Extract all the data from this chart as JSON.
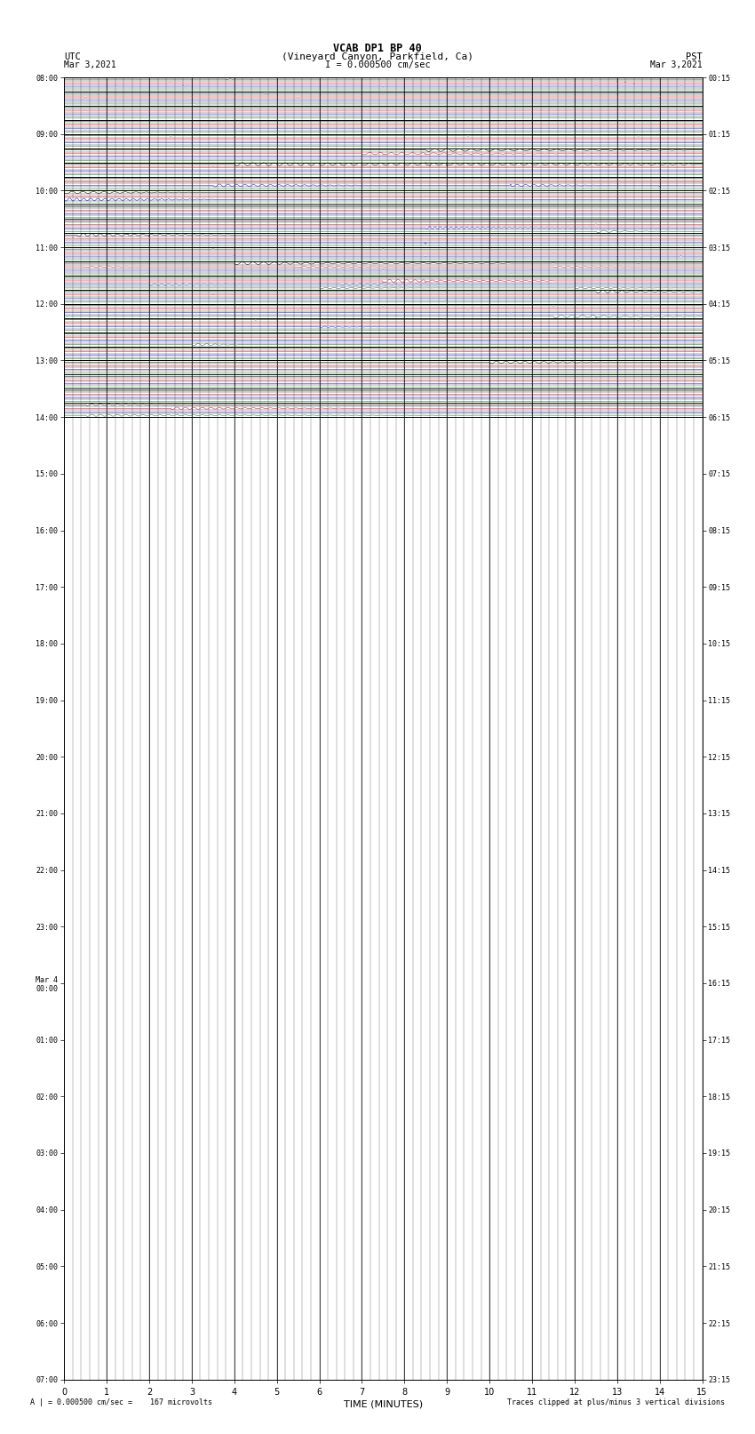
{
  "title_line1": "VCAB DP1 BP 40",
  "title_line2": "(Vineyard Canyon, Parkfield, Ca)",
  "scale_text": "I = 0.000500 cm/sec",
  "utc_label": "UTC",
  "pst_label": "PST",
  "date_left": "Mar 3,2021",
  "date_right": "Mar 3,2021",
  "xlabel": "TIME (MINUTES)",
  "footer_left": "A | = 0.000500 cm/sec =    167 microvolts",
  "footer_right": "Traces clipped at plus/minus 3 vertical divisions",
  "bg_color": "#ffffff",
  "trace_colors": [
    "black",
    "red",
    "blue",
    "green"
  ],
  "utc_times_labeled": {
    "0": "08:00",
    "4": "09:00",
    "8": "10:00",
    "12": "11:00",
    "16": "12:00",
    "20": "13:00",
    "24": "14:00",
    "28": "15:00",
    "32": "16:00",
    "36": "17:00",
    "40": "18:00",
    "44": "19:00",
    "48": "20:00",
    "52": "21:00",
    "56": "22:00",
    "60": "23:00",
    "64": "Mar 4\n00:00",
    "68": "01:00",
    "72": "02:00",
    "76": "03:00",
    "80": "04:00",
    "84": "05:00",
    "88": "06:00",
    "92": "07:00"
  },
  "pst_times_labeled": {
    "0": "00:15",
    "4": "01:15",
    "8": "02:15",
    "12": "03:15",
    "16": "04:15",
    "20": "05:15",
    "24": "06:15",
    "28": "07:15",
    "32": "08:15",
    "36": "09:15",
    "40": "10:15",
    "44": "11:15",
    "48": "12:15",
    "52": "13:15",
    "56": "14:15",
    "60": "15:15",
    "64": "16:15",
    "68": "17:15",
    "72": "18:15",
    "76": "19:15",
    "80": "20:15",
    "84": "21:15",
    "88": "22:15",
    "92": "23:15"
  },
  "n_rows": 24,
  "n_subrows": 4,
  "xmin": 0,
  "xmax": 15
}
